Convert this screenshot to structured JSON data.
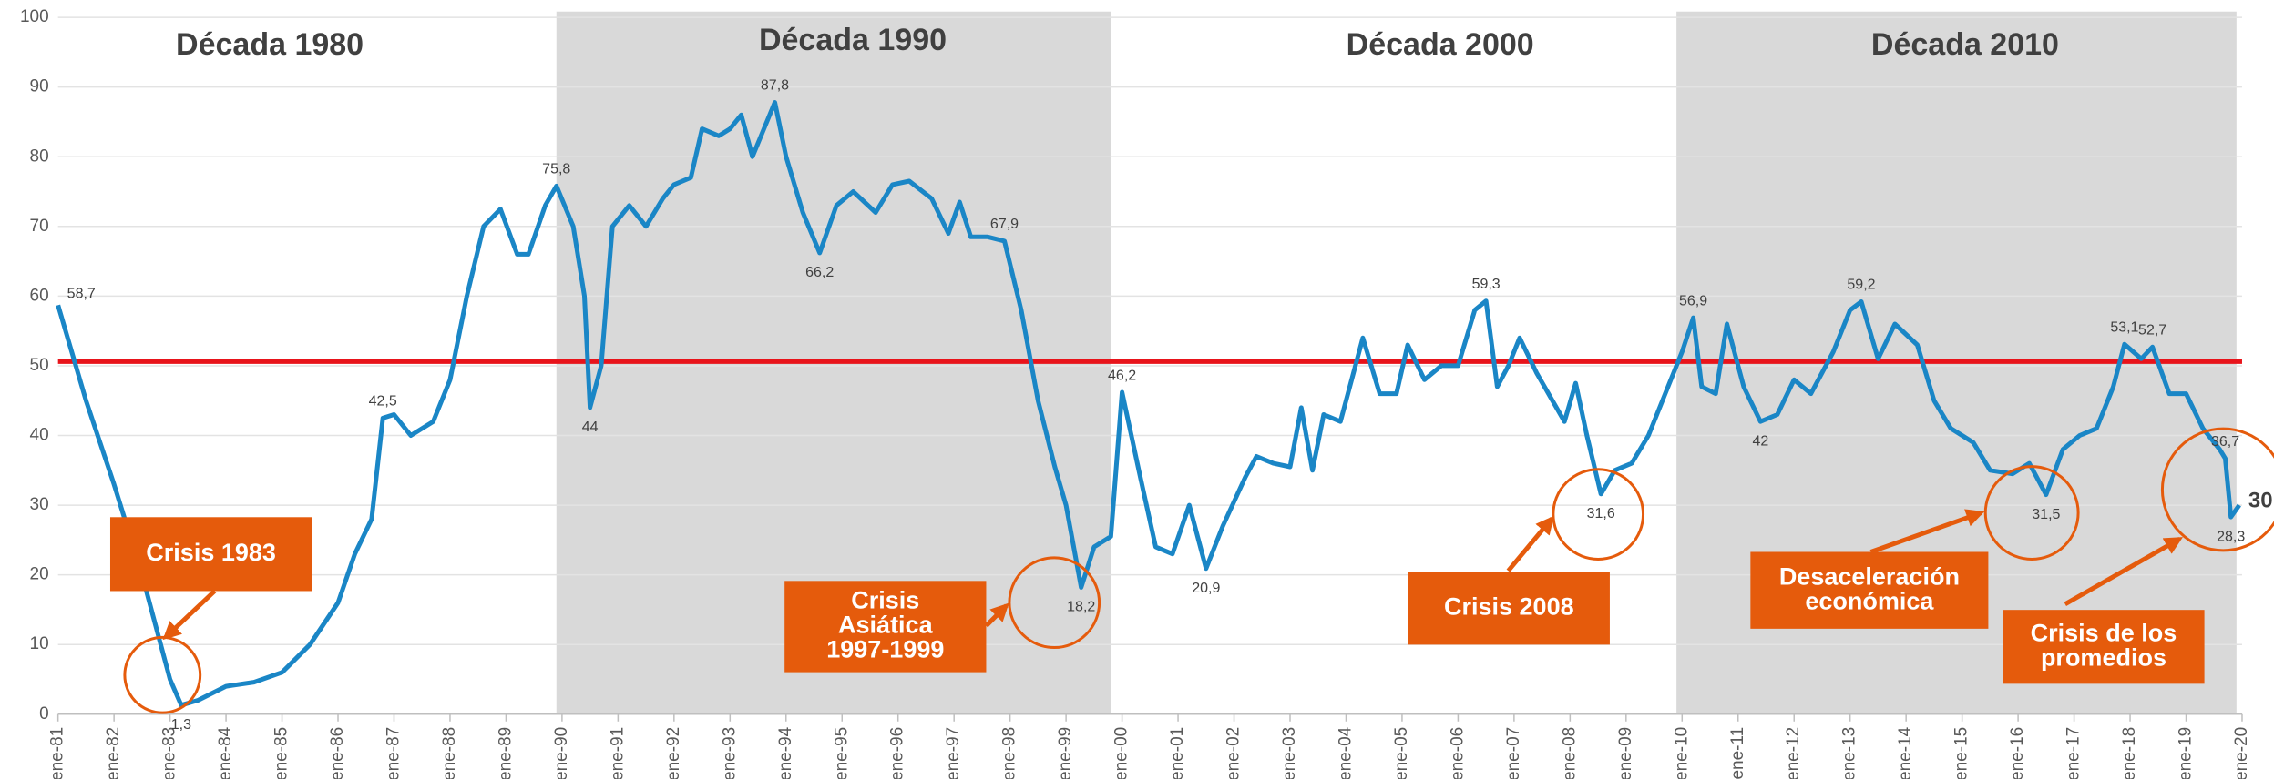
{
  "chart_data": {
    "type": "line",
    "decade_titles": [
      "Década 1980",
      "Década 1990",
      "Década 2000",
      "Década 2010"
    ],
    "bands": [
      [
        1989.9,
        1999.8
      ],
      [
        2009.9,
        2019.9
      ]
    ],
    "band_color": "#d9d9d9",
    "reference_line": 50.6,
    "reference_color": "#e8141b",
    "xlim": [
      1981,
      2020
    ],
    "xticks": [
      {
        "value": 1981,
        "label": "ene-81"
      },
      {
        "value": 1982,
        "label": "ene-82"
      },
      {
        "value": 1983,
        "label": "ene-83"
      },
      {
        "value": 1984,
        "label": "ene-84"
      },
      {
        "value": 1985,
        "label": "ene-85"
      },
      {
        "value": 1986,
        "label": "ene-86"
      },
      {
        "value": 1987,
        "label": "ene-87"
      },
      {
        "value": 1988,
        "label": "ene-88"
      },
      {
        "value": 1989,
        "label": "ene-89"
      },
      {
        "value": 1990,
        "label": "ene-90"
      },
      {
        "value": 1991,
        "label": "ene-91"
      },
      {
        "value": 1992,
        "label": "ene-92"
      },
      {
        "value": 1993,
        "label": "ene-93"
      },
      {
        "value": 1994,
        "label": "ene-94"
      },
      {
        "value": 1995,
        "label": "ene-95"
      },
      {
        "value": 1996,
        "label": "ene-96"
      },
      {
        "value": 1997,
        "label": "ene-97"
      },
      {
        "value": 1998,
        "label": "ene-98"
      },
      {
        "value": 1999,
        "label": "ene-99"
      },
      {
        "value": 2000,
        "label": "ene-00"
      },
      {
        "value": 2001,
        "label": "ene-01"
      },
      {
        "value": 2002,
        "label": "ene-02"
      },
      {
        "value": 2003,
        "label": "ene-03"
      },
      {
        "value": 2004,
        "label": "ene-04"
      },
      {
        "value": 2005,
        "label": "ene-05"
      },
      {
        "value": 2006,
        "label": "ene-06"
      },
      {
        "value": 2007,
        "label": "ene-07"
      },
      {
        "value": 2008,
        "label": "ene-08"
      },
      {
        "value": 2009,
        "label": "ene-09"
      },
      {
        "value": 2010,
        "label": "ene-10"
      },
      {
        "value": 2011,
        "label": "ene-11"
      },
      {
        "value": 2012,
        "label": "ene-12"
      },
      {
        "value": 2013,
        "label": "ene-13"
      },
      {
        "value": 2014,
        "label": "ene-14"
      },
      {
        "value": 2015,
        "label": "ene-15"
      },
      {
        "value": 2016,
        "label": "ene-16"
      },
      {
        "value": 2017,
        "label": "ene-17"
      },
      {
        "value": 2018,
        "label": "ene-18"
      },
      {
        "value": 2019,
        "label": "ene-19"
      },
      {
        "value": 2020,
        "label": "ene-20"
      }
    ],
    "ylim": [
      0,
      100
    ],
    "yticks": [
      0,
      10,
      20,
      30,
      40,
      50,
      60,
      70,
      80,
      90,
      100
    ],
    "grid": true,
    "series": [
      {
        "color": "#1a86c6",
        "x": [
          1981.0,
          1981.5,
          1982.0,
          1982.5,
          1983.0,
          1983.2,
          1983.5,
          1984.0,
          1984.5,
          1985.0,
          1985.5,
          1986.0,
          1986.3,
          1986.6,
          1986.8,
          1987.0,
          1987.3,
          1987.7,
          1988.0,
          1988.3,
          1988.6,
          1988.9,
          1989.2,
          1989.4,
          1989.7,
          1989.9,
          1990.2,
          1990.4,
          1990.5,
          1990.7,
          1990.9,
          1991.2,
          1991.5,
          1991.8,
          1992.0,
          1992.3,
          1992.5,
          1992.8,
          1993.0,
          1993.2,
          1993.4,
          1993.8,
          1994.0,
          1994.3,
          1994.6,
          1994.9,
          1995.2,
          1995.6,
          1995.9,
          1996.2,
          1996.6,
          1996.9,
          1997.1,
          1997.3,
          1997.6,
          1997.9,
          1998.2,
          1998.5,
          1998.8,
          1999.0,
          1999.27,
          1999.5,
          1999.8,
          2000.0,
          2000.3,
          2000.6,
          2000.9,
          2001.2,
          2001.5,
          2001.8,
          2002.2,
          2002.4,
          2002.7,
          2003.0,
          2003.2,
          2003.4,
          2003.6,
          2003.9,
          2004.1,
          2004.3,
          2004.6,
          2004.9,
          2005.1,
          2005.4,
          2005.7,
          2006.0,
          2006.3,
          2006.5,
          2006.7,
          2006.9,
          2007.1,
          2007.4,
          2007.9,
          2008.1,
          2008.3,
          2008.55,
          2008.8,
          2009.1,
          2009.4,
          2009.7,
          2010.0,
          2010.2,
          2010.35,
          2010.6,
          2010.8,
          2011.1,
          2011.4,
          2011.7,
          2012.0,
          2012.3,
          2012.7,
          2013.0,
          2013.2,
          2013.5,
          2013.8,
          2014.2,
          2014.5,
          2014.8,
          2015.2,
          2015.5,
          2015.9,
          2016.2,
          2016.5,
          2016.8,
          2017.1,
          2017.4,
          2017.7,
          2017.9,
          2018.2,
          2018.4,
          2018.7,
          2019.0,
          2019.3,
          2019.6,
          2019.7,
          2019.8,
          2019.95
        ],
        "values": [
          58.7,
          45,
          33,
          20,
          5,
          1.3,
          2,
          4,
          4.6,
          6,
          10,
          16,
          23,
          28,
          42.5,
          43,
          40,
          42,
          48,
          60,
          70,
          72.5,
          66,
          66,
          73,
          75.8,
          70,
          60,
          44,
          50,
          70,
          73,
          70,
          74,
          76,
          77,
          84,
          83,
          84,
          86,
          80,
          87.8,
          80,
          72,
          66.2,
          73,
          75,
          72,
          76,
          76.5,
          74,
          69,
          73.5,
          68.5,
          68.5,
          67.9,
          58,
          45,
          35.5,
          30,
          18.2,
          24,
          25.5,
          46.2,
          35,
          24,
          23,
          30,
          20.9,
          27,
          34,
          37,
          36,
          35.5,
          44,
          35,
          43,
          42,
          48,
          54,
          46,
          46,
          53,
          48,
          50,
          50,
          58,
          59.3,
          47,
          50,
          54,
          49,
          42,
          47.5,
          40,
          31.6,
          35,
          36,
          40,
          46,
          52,
          56.9,
          47,
          46,
          56,
          47,
          42,
          43,
          48,
          46,
          52,
          58,
          59.2,
          51,
          56,
          53,
          45,
          41,
          39,
          35,
          34.5,
          36,
          31.5,
          38,
          40,
          41,
          47,
          53.1,
          51,
          52.7,
          46,
          46,
          41,
          38,
          36.7,
          28.3,
          30
        ],
        "value_labels": [
          "58,7",
          null,
          null,
          null,
          null,
          "1,3",
          null,
          null,
          null,
          null,
          null,
          null,
          null,
          null,
          "42,5",
          null,
          null,
          null,
          null,
          null,
          null,
          null,
          null,
          null,
          null,
          "75,8",
          null,
          null,
          "44",
          null,
          null,
          null,
          null,
          null,
          null,
          null,
          null,
          null,
          null,
          null,
          null,
          "87,8",
          null,
          null,
          "66,2",
          null,
          null,
          null,
          null,
          null,
          null,
          null,
          null,
          null,
          null,
          "67,9",
          null,
          null,
          null,
          null,
          "18,2",
          null,
          null,
          "46,2",
          null,
          null,
          null,
          null,
          "20,9",
          null,
          null,
          null,
          null,
          null,
          null,
          null,
          null,
          null,
          null,
          null,
          null,
          null,
          null,
          null,
          null,
          null,
          null,
          "59,3",
          null,
          null,
          null,
          null,
          null,
          null,
          null,
          "31,6",
          null,
          null,
          null,
          null,
          null,
          "56,9",
          null,
          null,
          null,
          null,
          "42",
          null,
          null,
          null,
          null,
          null,
          "59,2",
          null,
          null,
          null,
          null,
          null,
          null,
          null,
          null,
          null,
          "31,5",
          null,
          null,
          null,
          null,
          "53,1",
          null,
          "52,7",
          null,
          null,
          null,
          null,
          "36,7",
          "28,3",
          "30"
        ]
      }
    ],
    "annotations": [
      {
        "lines": [
          "Crisis 1983"
        ]
      },
      {
        "lines": [
          "Crisis",
          "Asiática",
          "1997-1999"
        ]
      },
      {
        "lines": [
          "Crisis 2008"
        ]
      },
      {
        "lines": [
          "Desaceleración",
          "económica"
        ]
      },
      {
        "lines": [
          "Crisis de los",
          "promedios"
        ]
      }
    ],
    "annotation_color": "#e55b0c"
  }
}
